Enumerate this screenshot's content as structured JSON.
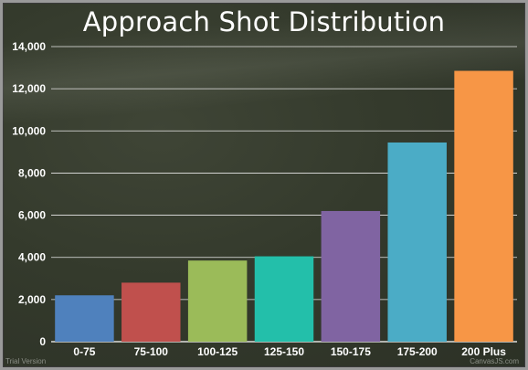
{
  "chart_data": {
    "type": "bar",
    "title": "Approach Shot Distribution",
    "categories": [
      "0-75",
      "75-100",
      "100-125",
      "125-150",
      "150-175",
      "175-200",
      "200 Plus"
    ],
    "values": [
      2200,
      2800,
      3850,
      4050,
      6200,
      9450,
      12850
    ],
    "colors": [
      "#4f81bd",
      "#c0504d",
      "#9bbb59",
      "#23bfaa",
      "#8064a2",
      "#4bacc6",
      "#f79646"
    ],
    "ylim": [
      0,
      14000
    ],
    "yticks": [
      0,
      2000,
      4000,
      6000,
      8000,
      10000,
      12000,
      14000
    ],
    "ytick_labels": [
      "0",
      "2,000",
      "4,000",
      "6,000",
      "8,000",
      "10,000",
      "12,000",
      "14,000"
    ],
    "grid": true,
    "legend": "none"
  },
  "watermark": {
    "left": "Trial Version",
    "right": "CanvasJS.com"
  }
}
